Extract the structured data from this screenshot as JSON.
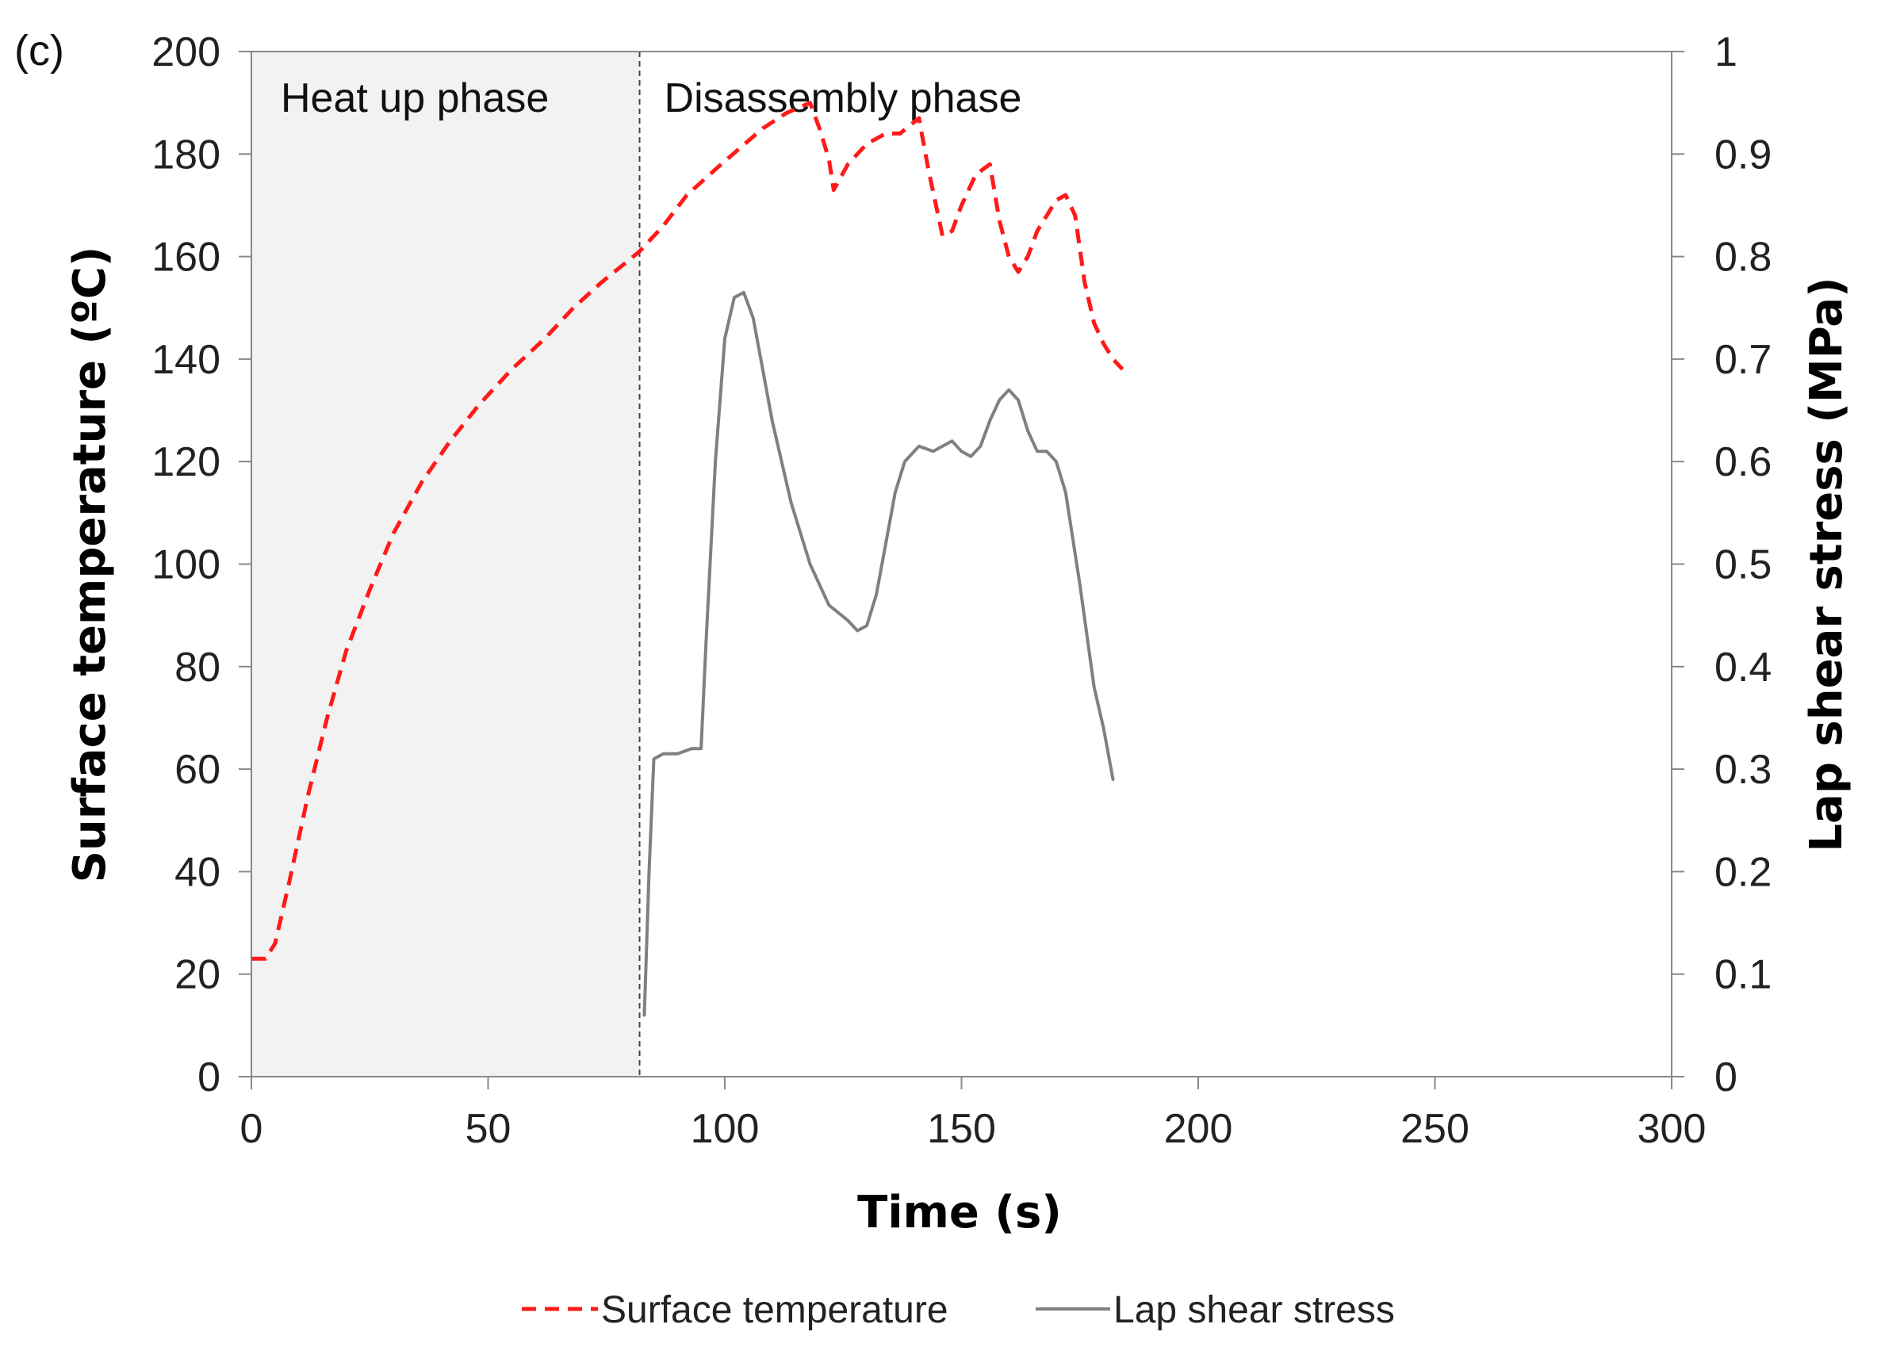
{
  "chart_data": {
    "type": "line",
    "panel_label": "(c)",
    "xlabel": "Time (s)",
    "ylabel": "Surface temperature (ºC)",
    "y2label": "Lap shear stress (MPa)",
    "xlim": [
      0,
      300
    ],
    "ylim": [
      0,
      200
    ],
    "y2lim": [
      0,
      1
    ],
    "x_ticks": [
      "0",
      "50",
      "100",
      "150",
      "200",
      "250",
      "300"
    ],
    "y_ticks": [
      "0",
      "20",
      "40",
      "60",
      "80",
      "100",
      "120",
      "140",
      "160",
      "180",
      "200"
    ],
    "y2_ticks": [
      "0",
      "0.1",
      "0.2",
      "0.3",
      "0.4",
      "0.5",
      "0.6",
      "0.7",
      "0.8",
      "0.9",
      "1"
    ],
    "grid": false,
    "legend_position": "bottom-center",
    "regions": [
      {
        "label": "Heat up phase",
        "x_start": 0,
        "x_end": 82,
        "shaded": true
      },
      {
        "label": "Disassembly phase",
        "x_start": 82,
        "x_end": 300,
        "shaded": false
      }
    ],
    "phase_boundary_x": 82,
    "series": [
      {
        "name": "Surface temperature",
        "axis": "left",
        "style": "dashed",
        "color": "#ff1a1a",
        "x": [
          0,
          3,
          5,
          8,
          12,
          16,
          20,
          25,
          30,
          36,
          42,
          48,
          55,
          62,
          68,
          74,
          78,
          82,
          87,
          92,
          98,
          103,
          108,
          113,
          118,
          120,
          122,
          123,
          126,
          130,
          134,
          137,
          141,
          143,
          146,
          148,
          150,
          153,
          156,
          158,
          160,
          162,
          164,
          166,
          168,
          170,
          172,
          174,
          176,
          178,
          180,
          182,
          184
        ],
        "y": [
          23,
          23,
          26,
          38,
          55,
          70,
          83,
          95,
          106,
          116,
          124,
          131,
          138,
          144,
          150,
          155,
          158,
          161,
          166,
          172,
          177,
          181,
          185,
          188,
          190,
          185,
          179,
          173,
          178,
          182,
          184,
          184,
          187,
          177,
          164,
          165,
          170,
          176,
          178,
          167,
          160,
          157,
          160,
          165,
          168,
          171,
          172,
          168,
          155,
          147,
          143,
          140,
          138
        ]
      },
      {
        "name": "Lap shear stress",
        "axis": "right",
        "style": "solid",
        "color": "#808080",
        "x": [
          83,
          84,
          85,
          87,
          90,
          93,
          95,
          96,
          98,
          100,
          102,
          104,
          106,
          108,
          110,
          114,
          118,
          122,
          126,
          128,
          130,
          132,
          134,
          136,
          138,
          141,
          144,
          146,
          148,
          150,
          152,
          154,
          156,
          158,
          160,
          162,
          164,
          166,
          168,
          170,
          172,
          175,
          178,
          180,
          182
        ],
        "y": [
          0.06,
          0.2,
          0.31,
          0.315,
          0.315,
          0.32,
          0.32,
          0.42,
          0.6,
          0.72,
          0.76,
          0.765,
          0.74,
          0.69,
          0.64,
          0.56,
          0.5,
          0.46,
          0.445,
          0.435,
          0.44,
          0.47,
          0.52,
          0.57,
          0.6,
          0.615,
          0.61,
          0.615,
          0.62,
          0.61,
          0.605,
          0.615,
          0.64,
          0.66,
          0.67,
          0.66,
          0.63,
          0.61,
          0.61,
          0.6,
          0.57,
          0.48,
          0.38,
          0.34,
          0.29
        ]
      }
    ]
  }
}
